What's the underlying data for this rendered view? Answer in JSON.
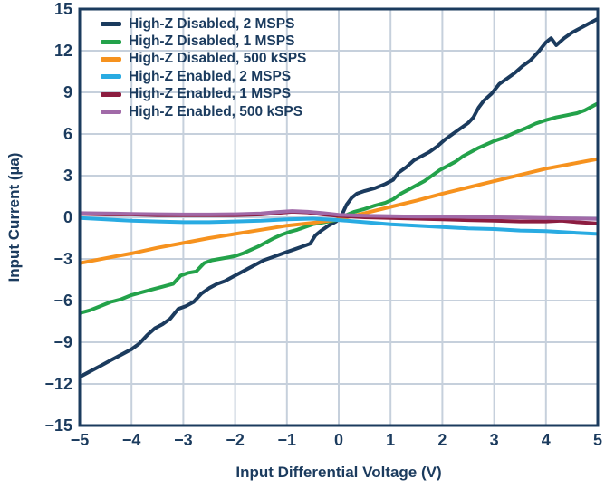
{
  "figure": {
    "background": "#ffffff",
    "text_color": "#1b3b5e",
    "grid_color": "#c6d0dc",
    "border_color": "#1b3b5e"
  },
  "chart_data": {
    "type": "line",
    "title": "",
    "xlabel": "Input Differential Voltage (V)",
    "ylabel": "Input Current (µa)",
    "xlim": [
      -5,
      5
    ],
    "ylim": [
      -15,
      15
    ],
    "xticks": [
      -5,
      -4,
      -3,
      -2,
      -1,
      0,
      1,
      2,
      3,
      4,
      5
    ],
    "yticks": [
      15,
      12,
      9,
      6,
      3,
      0,
      -3,
      -6,
      -9,
      -12,
      -15
    ],
    "grid": true,
    "legend_position": "top-left",
    "series": [
      {
        "name": "High-Z Disabled, 2 MSPS",
        "color": "#1b3b5e",
        "points": [
          [
            -5,
            -11.5
          ],
          [
            -4.8,
            -11.1
          ],
          [
            -4.6,
            -10.7
          ],
          [
            -4.4,
            -10.3
          ],
          [
            -4.2,
            -9.9
          ],
          [
            -4.0,
            -9.5
          ],
          [
            -3.85,
            -9.1
          ],
          [
            -3.7,
            -8.5
          ],
          [
            -3.55,
            -8.0
          ],
          [
            -3.4,
            -7.7
          ],
          [
            -3.25,
            -7.3
          ],
          [
            -3.1,
            -6.6
          ],
          [
            -2.95,
            -6.4
          ],
          [
            -2.8,
            -6.1
          ],
          [
            -2.65,
            -5.5
          ],
          [
            -2.5,
            -5.1
          ],
          [
            -2.35,
            -4.8
          ],
          [
            -2.2,
            -4.6
          ],
          [
            -2.05,
            -4.3
          ],
          [
            -1.9,
            -4.0
          ],
          [
            -1.75,
            -3.7
          ],
          [
            -1.6,
            -3.4
          ],
          [
            -1.45,
            -3.1
          ],
          [
            -1.3,
            -2.9
          ],
          [
            -1.15,
            -2.7
          ],
          [
            -1.0,
            -2.5
          ],
          [
            -0.85,
            -2.3
          ],
          [
            -0.7,
            -2.1
          ],
          [
            -0.55,
            -1.9
          ],
          [
            -0.45,
            -1.3
          ],
          [
            -0.35,
            -1.0
          ],
          [
            -0.2,
            -0.6
          ],
          [
            -0.05,
            -0.3
          ],
          [
            0.05,
            0.1
          ],
          [
            0.15,
            0.9
          ],
          [
            0.25,
            1.4
          ],
          [
            0.35,
            1.7
          ],
          [
            0.5,
            1.9
          ],
          [
            0.7,
            2.1
          ],
          [
            0.9,
            2.4
          ],
          [
            1.05,
            2.7
          ],
          [
            1.15,
            3.2
          ],
          [
            1.3,
            3.6
          ],
          [
            1.45,
            4.1
          ],
          [
            1.6,
            4.4
          ],
          [
            1.75,
            4.7
          ],
          [
            1.9,
            5.1
          ],
          [
            2.05,
            5.6
          ],
          [
            2.2,
            6.0
          ],
          [
            2.35,
            6.4
          ],
          [
            2.5,
            6.8
          ],
          [
            2.6,
            7.2
          ],
          [
            2.7,
            7.9
          ],
          [
            2.8,
            8.4
          ],
          [
            2.95,
            8.9
          ],
          [
            3.1,
            9.6
          ],
          [
            3.25,
            10.0
          ],
          [
            3.4,
            10.4
          ],
          [
            3.55,
            10.9
          ],
          [
            3.7,
            11.3
          ],
          [
            3.85,
            11.9
          ],
          [
            4.0,
            12.6
          ],
          [
            4.1,
            12.9
          ],
          [
            4.2,
            12.4
          ],
          [
            4.35,
            12.9
          ],
          [
            4.5,
            13.3
          ],
          [
            4.65,
            13.6
          ],
          [
            4.8,
            13.9
          ],
          [
            5,
            14.3
          ]
        ]
      },
      {
        "name": "High-Z Disabled, 1 MSPS",
        "color": "#23a24a",
        "points": [
          [
            -5,
            -6.9
          ],
          [
            -4.8,
            -6.7
          ],
          [
            -4.6,
            -6.4
          ],
          [
            -4.4,
            -6.1
          ],
          [
            -4.2,
            -5.9
          ],
          [
            -4.0,
            -5.6
          ],
          [
            -3.8,
            -5.4
          ],
          [
            -3.6,
            -5.2
          ],
          [
            -3.4,
            -5.0
          ],
          [
            -3.2,
            -4.8
          ],
          [
            -3.05,
            -4.2
          ],
          [
            -2.9,
            -4.0
          ],
          [
            -2.75,
            -3.9
          ],
          [
            -2.6,
            -3.3
          ],
          [
            -2.45,
            -3.1
          ],
          [
            -2.3,
            -3.0
          ],
          [
            -2.15,
            -2.9
          ],
          [
            -2.0,
            -2.8
          ],
          [
            -1.85,
            -2.6
          ],
          [
            -1.7,
            -2.35
          ],
          [
            -1.55,
            -2.1
          ],
          [
            -1.4,
            -1.8
          ],
          [
            -1.25,
            -1.5
          ],
          [
            -1.1,
            -1.25
          ],
          [
            -0.95,
            -1.05
          ],
          [
            -0.8,
            -0.9
          ],
          [
            -0.65,
            -0.7
          ],
          [
            -0.5,
            -0.5
          ],
          [
            -0.35,
            -0.4
          ],
          [
            -0.2,
            -0.3
          ],
          [
            -0.05,
            -0.2
          ],
          [
            0.1,
            0.1
          ],
          [
            0.3,
            0.4
          ],
          [
            0.5,
            0.6
          ],
          [
            0.7,
            0.85
          ],
          [
            0.9,
            1.05
          ],
          [
            1.05,
            1.3
          ],
          [
            1.2,
            1.7
          ],
          [
            1.35,
            2.0
          ],
          [
            1.5,
            2.3
          ],
          [
            1.65,
            2.6
          ],
          [
            1.8,
            3.0
          ],
          [
            1.95,
            3.4
          ],
          [
            2.1,
            3.7
          ],
          [
            2.25,
            4.0
          ],
          [
            2.4,
            4.4
          ],
          [
            2.55,
            4.7
          ],
          [
            2.7,
            5.0
          ],
          [
            2.85,
            5.25
          ],
          [
            3.0,
            5.5
          ],
          [
            3.2,
            5.75
          ],
          [
            3.4,
            6.1
          ],
          [
            3.6,
            6.4
          ],
          [
            3.8,
            6.75
          ],
          [
            4.0,
            7.0
          ],
          [
            4.2,
            7.2
          ],
          [
            4.4,
            7.35
          ],
          [
            4.6,
            7.5
          ],
          [
            4.75,
            7.7
          ],
          [
            4.9,
            8.0
          ],
          [
            5,
            8.2
          ]
        ]
      },
      {
        "name": "High-Z Disabled, 500 kSPS",
        "color": "#f6921e",
        "points": [
          [
            -5,
            -3.3
          ],
          [
            -4.5,
            -2.95
          ],
          [
            -4,
            -2.6
          ],
          [
            -3.5,
            -2.2
          ],
          [
            -3,
            -1.85
          ],
          [
            -2.5,
            -1.5
          ],
          [
            -2,
            -1.2
          ],
          [
            -1.5,
            -0.9
          ],
          [
            -1,
            -0.6
          ],
          [
            -0.5,
            -0.4
          ],
          [
            0,
            -0.15
          ],
          [
            0.5,
            0.3
          ],
          [
            1,
            0.75
          ],
          [
            1.5,
            1.2
          ],
          [
            2,
            1.7
          ],
          [
            2.5,
            2.15
          ],
          [
            3,
            2.6
          ],
          [
            3.5,
            3.05
          ],
          [
            4,
            3.5
          ],
          [
            4.5,
            3.85
          ],
          [
            5,
            4.2
          ]
        ]
      },
      {
        "name": "High-Z Enabled, 2 MSPS",
        "color": "#29abe2",
        "points": [
          [
            -5,
            -0.05
          ],
          [
            -4.5,
            -0.15
          ],
          [
            -4,
            -0.25
          ],
          [
            -3.5,
            -0.3
          ],
          [
            -3,
            -0.35
          ],
          [
            -2.5,
            -0.35
          ],
          [
            -2,
            -0.3
          ],
          [
            -1.5,
            -0.25
          ],
          [
            -1,
            -0.15
          ],
          [
            -0.5,
            -0.1
          ],
          [
            0,
            -0.2
          ],
          [
            0.5,
            -0.35
          ],
          [
            1,
            -0.5
          ],
          [
            1.5,
            -0.6
          ],
          [
            2,
            -0.7
          ],
          [
            2.5,
            -0.8
          ],
          [
            3,
            -0.85
          ],
          [
            3.5,
            -0.95
          ],
          [
            4,
            -1.0
          ],
          [
            4.5,
            -1.1
          ],
          [
            5,
            -1.2
          ]
        ]
      },
      {
        "name": "High-Z Enabled, 1 MSPS",
        "color": "#8c1d40",
        "points": [
          [
            -5,
            0.25
          ],
          [
            -4.5,
            0.2
          ],
          [
            -4,
            0.2
          ],
          [
            -3.5,
            0.15
          ],
          [
            -3,
            0.15
          ],
          [
            -2.5,
            0.15
          ],
          [
            -2,
            0.15
          ],
          [
            -1.5,
            0.2
          ],
          [
            -1.2,
            0.3
          ],
          [
            -0.9,
            0.4
          ],
          [
            -0.6,
            0.35
          ],
          [
            -0.3,
            0.2
          ],
          [
            0,
            0.1
          ],
          [
            0.5,
            0.0
          ],
          [
            1,
            -0.05
          ],
          [
            1.5,
            -0.1
          ],
          [
            2,
            -0.15
          ],
          [
            2.5,
            -0.2
          ],
          [
            3,
            -0.25
          ],
          [
            3.5,
            -0.3
          ],
          [
            4,
            -0.3
          ],
          [
            4.3,
            -0.25
          ],
          [
            4.6,
            -0.35
          ],
          [
            5,
            -0.45
          ]
        ]
      },
      {
        "name": "High-Z Enabled, 500 kSPS",
        "color": "#a16aa8",
        "points": [
          [
            -5,
            0.3
          ],
          [
            -4.5,
            0.28
          ],
          [
            -4,
            0.25
          ],
          [
            -3.5,
            0.22
          ],
          [
            -3,
            0.2
          ],
          [
            -2.5,
            0.2
          ],
          [
            -2,
            0.22
          ],
          [
            -1.5,
            0.28
          ],
          [
            -1.2,
            0.38
          ],
          [
            -0.9,
            0.45
          ],
          [
            -0.6,
            0.4
          ],
          [
            -0.3,
            0.3
          ],
          [
            0,
            0.18
          ],
          [
            0.5,
            0.12
          ],
          [
            1,
            0.08
          ],
          [
            1.5,
            0.05
          ],
          [
            2,
            0.05
          ],
          [
            2.5,
            0.02
          ],
          [
            3,
            0.0
          ],
          [
            3.5,
            -0.02
          ],
          [
            4,
            -0.05
          ],
          [
            4.5,
            -0.08
          ],
          [
            5,
            -0.12
          ]
        ]
      }
    ]
  }
}
